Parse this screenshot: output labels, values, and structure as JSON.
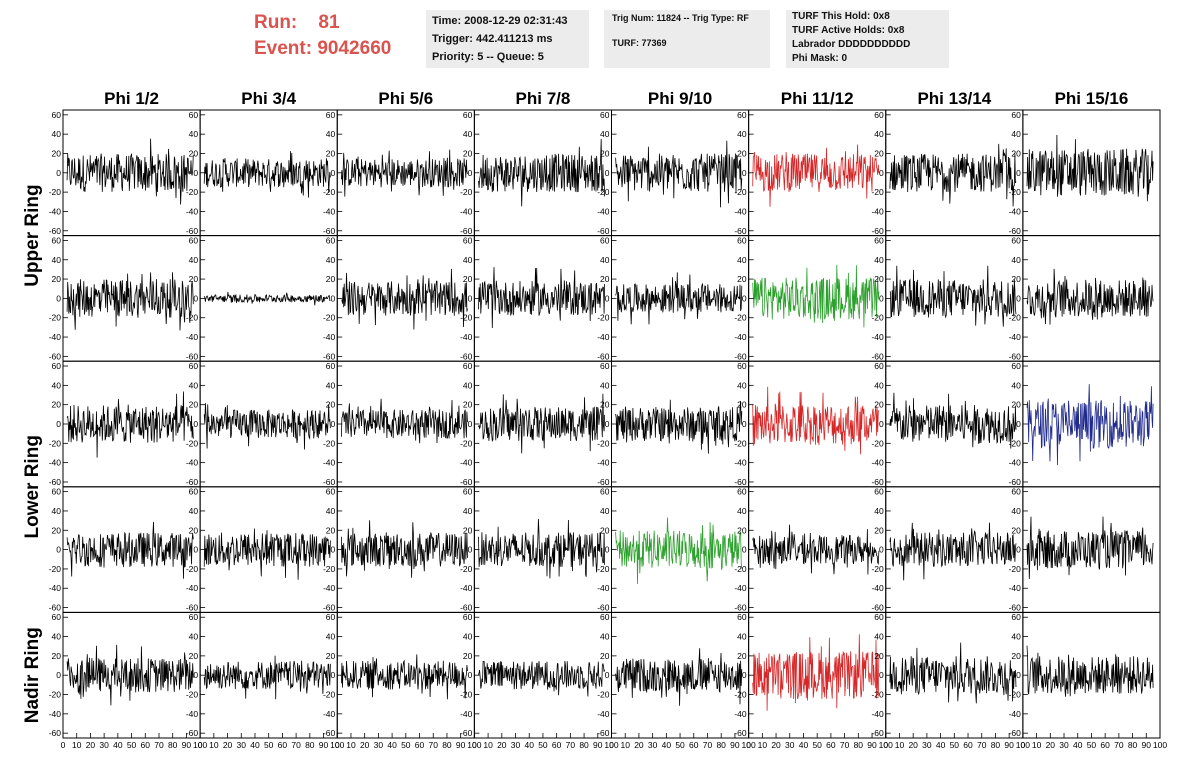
{
  "header": {
    "run_label": "Run:",
    "run_value": "81",
    "event_label": "Event:",
    "event_value": "9042660",
    "time_line": "Time: 2008-12-29 02:31:43",
    "trigger_line": "Trigger: 442.411213 ms",
    "priority_line": "Priority: 5 -- Queue: 5",
    "trig_line": "Trig Num: 11824 -- Trig Type: RF",
    "turf_line": "TURF: 77369",
    "turf_hold_line": "TURF This Hold: 0x8",
    "turf_active_line": "TURF Active Holds: 0x8",
    "labrador_line": "Labrador DDDDDDDDDD",
    "phi_mask_line": "Phi Mask: 0"
  },
  "chart_data": {
    "type": "line",
    "title": "",
    "columns": [
      "Phi 1/2",
      "Phi 3/4",
      "Phi 5/6",
      "Phi 7/8",
      "Phi 9/10",
      "Phi 11/12",
      "Phi 13/14",
      "Phi 15/16"
    ],
    "ring_labels": [
      {
        "label": "Upper Ring",
        "rows": [
          0,
          1
        ]
      },
      {
        "label": "Lower Ring",
        "rows": [
          2,
          3
        ]
      },
      {
        "label": "Nadir Ring",
        "rows": [
          4
        ]
      }
    ],
    "xlim": [
      0,
      100
    ],
    "ylim": [
      -65,
      65
    ],
    "x_ticks": [
      "0",
      "10",
      "20",
      "30",
      "40",
      "50",
      "60",
      "70",
      "80",
      "90",
      "100"
    ],
    "y_ticks": [
      "60",
      "40",
      "20",
      "0",
      "-20",
      "-40",
      "-60"
    ],
    "series": [
      {
        "row": 0,
        "col": 0,
        "color": "#000000",
        "amplitude_approx": 20
      },
      {
        "row": 0,
        "col": 1,
        "color": "#000000",
        "amplitude_approx": 15
      },
      {
        "row": 0,
        "col": 2,
        "color": "#000000",
        "amplitude_approx": 15
      },
      {
        "row": 0,
        "col": 3,
        "color": "#000000",
        "amplitude_approx": 20
      },
      {
        "row": 0,
        "col": 4,
        "color": "#000000",
        "amplitude_approx": 20
      },
      {
        "row": 0,
        "col": 5,
        "color": "#d62728",
        "amplitude_approx": 20
      },
      {
        "row": 0,
        "col": 6,
        "color": "#000000",
        "amplitude_approx": 20
      },
      {
        "row": 0,
        "col": 7,
        "color": "#000000",
        "amplitude_approx": 25
      },
      {
        "row": 1,
        "col": 0,
        "color": "#000000",
        "amplitude_approx": 20
      },
      {
        "row": 1,
        "col": 1,
        "color": "#000000",
        "amplitude_approx": 4
      },
      {
        "row": 1,
        "col": 2,
        "color": "#000000",
        "amplitude_approx": 18
      },
      {
        "row": 1,
        "col": 3,
        "color": "#000000",
        "amplitude_approx": 18
      },
      {
        "row": 1,
        "col": 4,
        "color": "#000000",
        "amplitude_approx": 15
      },
      {
        "row": 1,
        "col": 5,
        "color": "#2ca02c",
        "amplitude_approx": 22
      },
      {
        "row": 1,
        "col": 6,
        "color": "#000000",
        "amplitude_approx": 20
      },
      {
        "row": 1,
        "col": 7,
        "color": "#000000",
        "amplitude_approx": 20
      },
      {
        "row": 2,
        "col": 0,
        "color": "#000000",
        "amplitude_approx": 20
      },
      {
        "row": 2,
        "col": 1,
        "color": "#000000",
        "amplitude_approx": 15
      },
      {
        "row": 2,
        "col": 2,
        "color": "#000000",
        "amplitude_approx": 15
      },
      {
        "row": 2,
        "col": 3,
        "color": "#000000",
        "amplitude_approx": 18
      },
      {
        "row": 2,
        "col": 4,
        "color": "#000000",
        "amplitude_approx": 18
      },
      {
        "row": 2,
        "col": 5,
        "color": "#d62728",
        "amplitude_approx": 22
      },
      {
        "row": 2,
        "col": 6,
        "color": "#000000",
        "amplitude_approx": 20
      },
      {
        "row": 2,
        "col": 7,
        "color": "#1f2a8c",
        "amplitude_approx": 25
      },
      {
        "row": 3,
        "col": 0,
        "color": "#000000",
        "amplitude_approx": 18
      },
      {
        "row": 3,
        "col": 1,
        "color": "#000000",
        "amplitude_approx": 18
      },
      {
        "row": 3,
        "col": 2,
        "color": "#000000",
        "amplitude_approx": 18
      },
      {
        "row": 3,
        "col": 3,
        "color": "#000000",
        "amplitude_approx": 18
      },
      {
        "row": 3,
        "col": 4,
        "color": "#2ca02c",
        "amplitude_approx": 20
      },
      {
        "row": 3,
        "col": 5,
        "color": "#000000",
        "amplitude_approx": 15
      },
      {
        "row": 3,
        "col": 6,
        "color": "#000000",
        "amplitude_approx": 18
      },
      {
        "row": 3,
        "col": 7,
        "color": "#000000",
        "amplitude_approx": 20
      },
      {
        "row": 4,
        "col": 0,
        "color": "#000000",
        "amplitude_approx": 18
      },
      {
        "row": 4,
        "col": 1,
        "color": "#000000",
        "amplitude_approx": 15
      },
      {
        "row": 4,
        "col": 2,
        "color": "#000000",
        "amplitude_approx": 15
      },
      {
        "row": 4,
        "col": 3,
        "color": "#000000",
        "amplitude_approx": 15
      },
      {
        "row": 4,
        "col": 4,
        "color": "#000000",
        "amplitude_approx": 18
      },
      {
        "row": 4,
        "col": 5,
        "color": "#d62728",
        "amplitude_approx": 25
      },
      {
        "row": 4,
        "col": 6,
        "color": "#000000",
        "amplitude_approx": 20
      },
      {
        "row": 4,
        "col": 7,
        "color": "#000000",
        "amplitude_approx": 20
      }
    ]
  }
}
